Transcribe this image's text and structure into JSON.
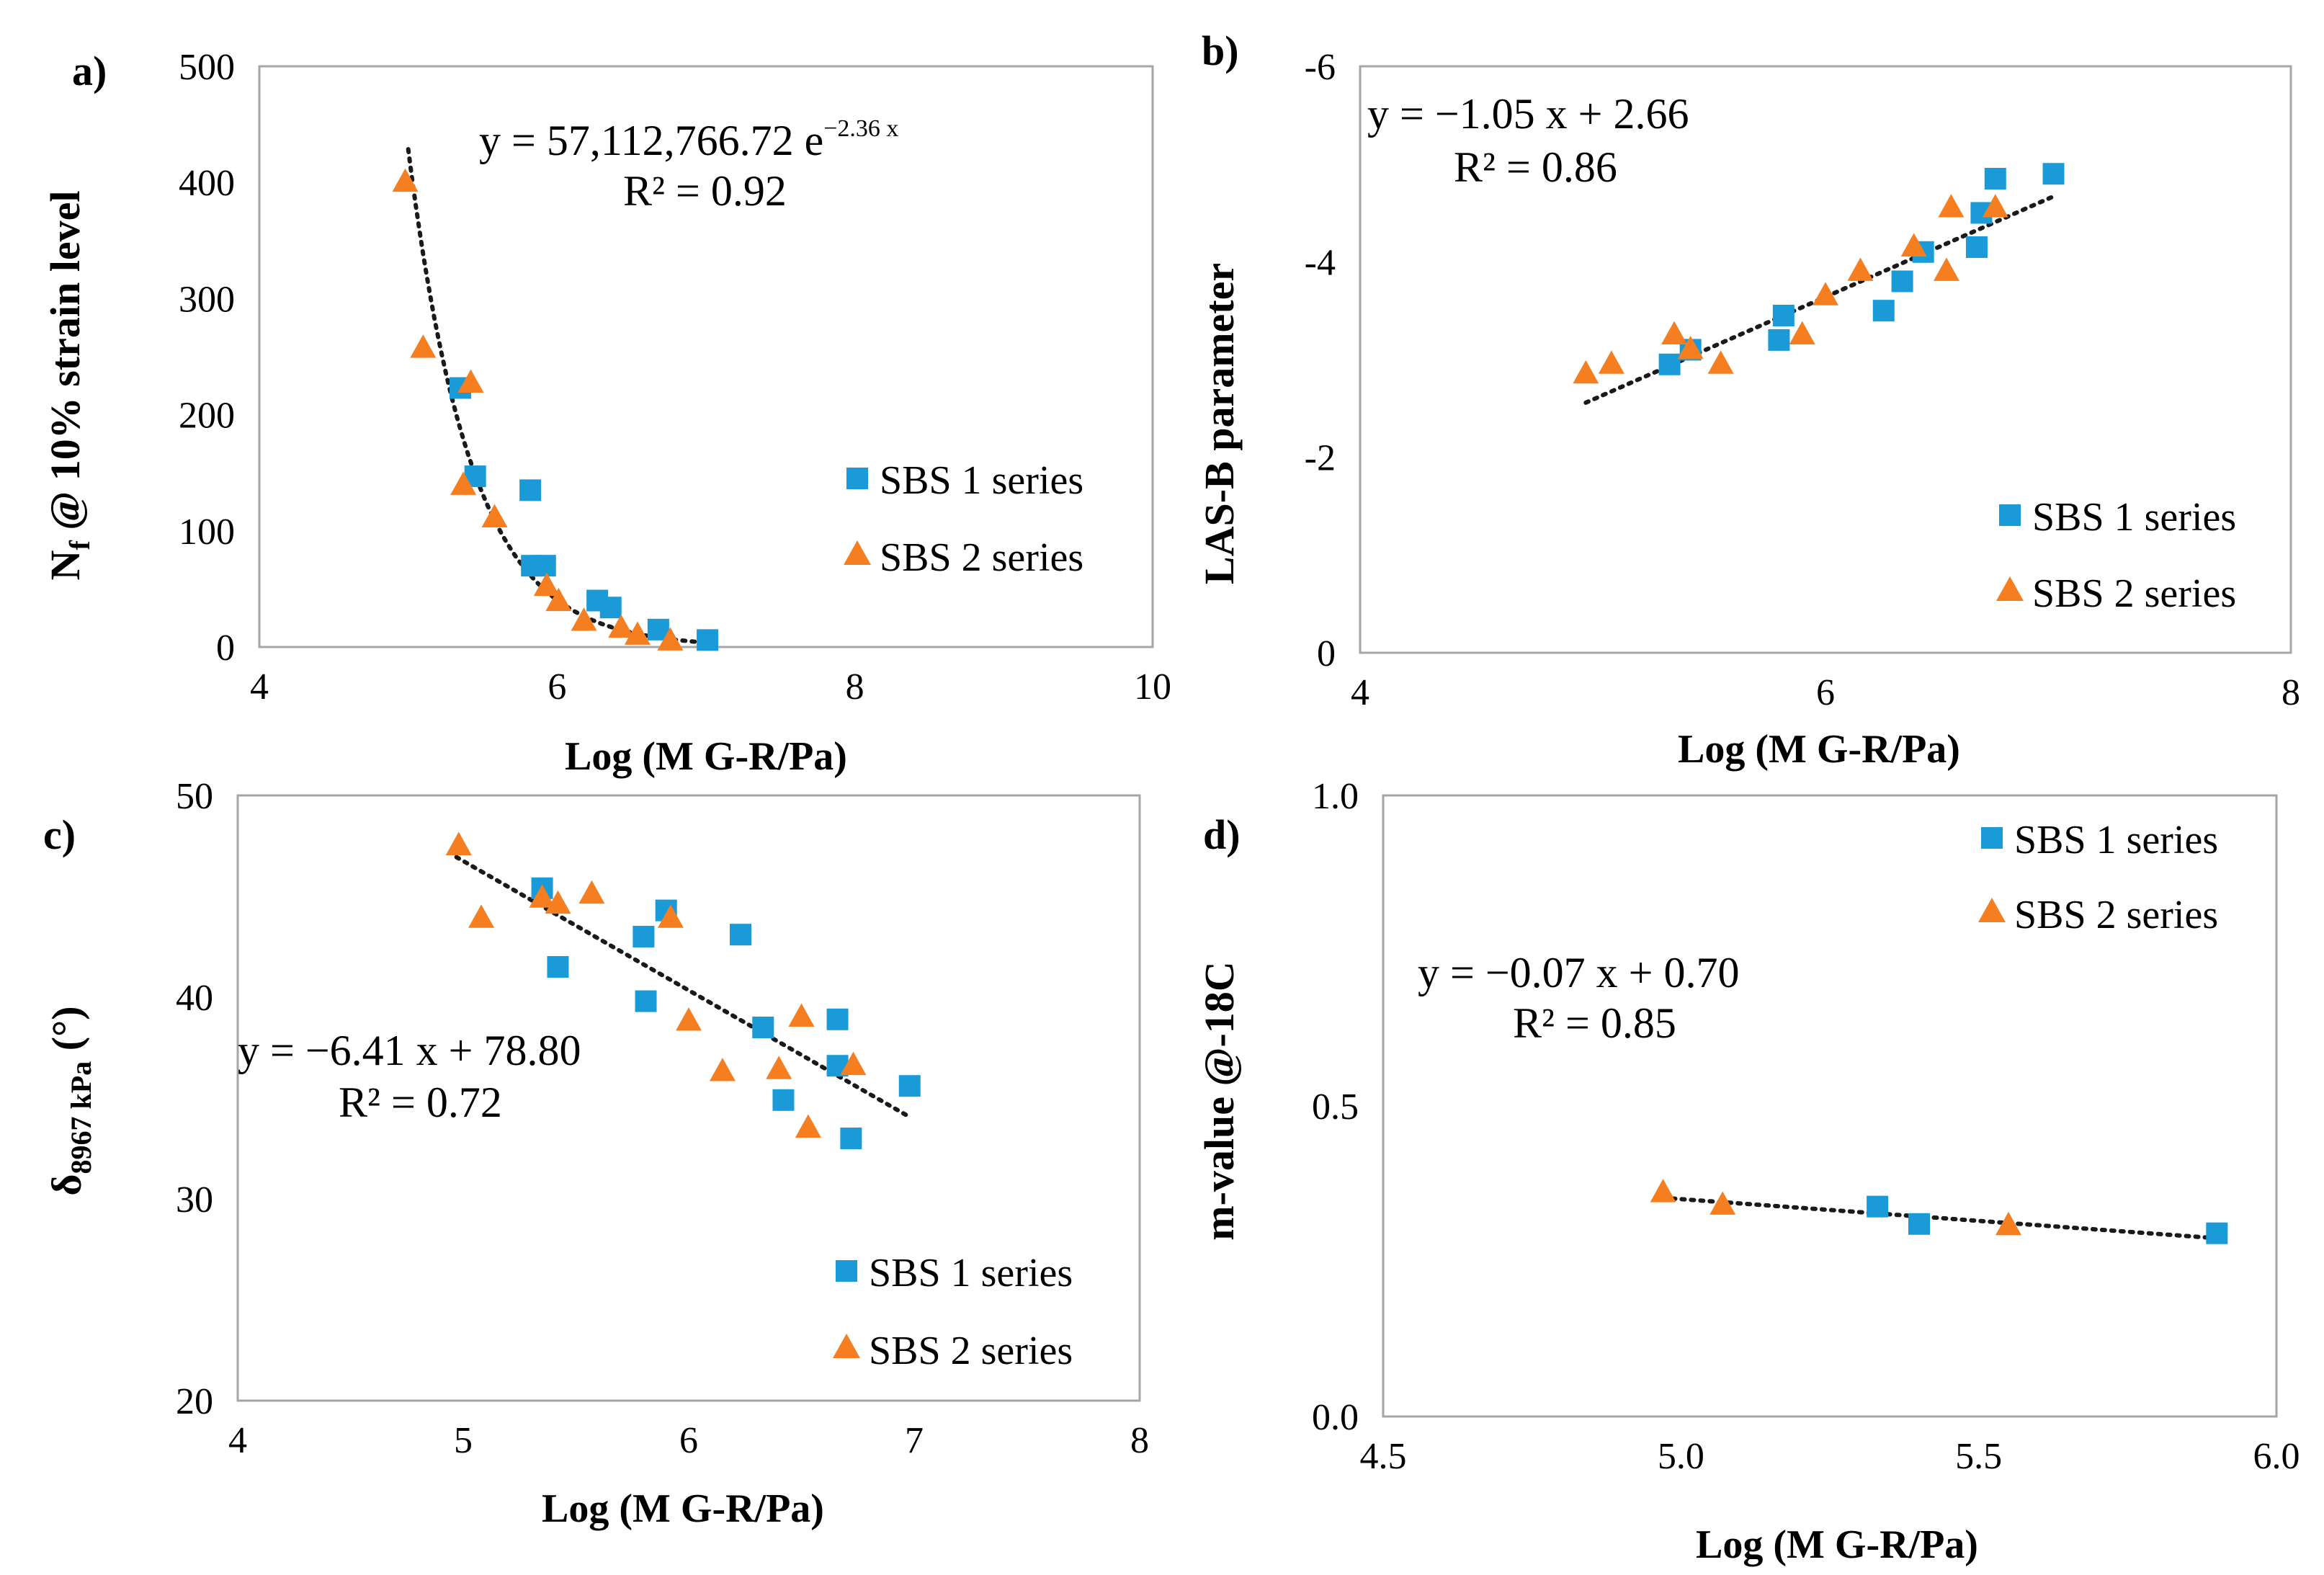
{
  "chart_data": [
    {
      "id": "a",
      "type": "scatter",
      "panel_label": "a)",
      "xlabel": "Log (M G-R/Pa)",
      "ylabel_main": "N",
      "ylabel_sub": "f",
      "ylabel_rest": " @ 10% strain level",
      "xlim": [
        4,
        10
      ],
      "ylim": [
        0,
        500
      ],
      "reversed_y": false,
      "x_ticks": [
        4,
        6,
        8,
        10
      ],
      "x_tick_labels": [
        "4",
        "6",
        "8",
        "10"
      ],
      "y_ticks": [
        0,
        100,
        200,
        300,
        400,
        500
      ],
      "y_tick_labels": [
        "0",
        "100",
        "200",
        "300",
        "400",
        "500"
      ],
      "trendline": {
        "kind": "exponential",
        "a": 57112766.72,
        "b": -2.36,
        "x_range": [
          5.0,
          7.0
        ]
      },
      "equation_line1": "y = 57,112,766.72 e",
      "equation_exponent": "−2.36 x",
      "equation_line2": "R² = 0.92",
      "legend_position": "right",
      "series": [
        {
          "name": "SBS 1 series",
          "marker": "square",
          "color": "#1A9BD7",
          "x": [
            5.35,
            5.45,
            5.82,
            5.83,
            5.92,
            6.27,
            6.36,
            6.68,
            7.01
          ],
          "y": [
            223,
            147,
            135,
            70,
            70,
            40,
            34,
            15,
            6
          ]
        },
        {
          "name": "SBS 2 series",
          "marker": "triangle",
          "color": "#F47E20",
          "x": [
            4.98,
            5.1,
            5.37,
            5.42,
            5.58,
            5.93,
            6.01,
            6.18,
            6.43,
            6.54,
            6.76
          ],
          "y": [
            400,
            257,
            139,
            227,
            111,
            52,
            39,
            22,
            16,
            10,
            5
          ]
        }
      ]
    },
    {
      "id": "b",
      "type": "scatter",
      "panel_label": "b)",
      "xlabel": "Log (M G-R/Pa)",
      "ylabel_main": "LAS-B parameter",
      "xlim": [
        4,
        8
      ],
      "ylim": [
        0,
        -6
      ],
      "reversed_y": true,
      "x_ticks": [
        4,
        6,
        8
      ],
      "x_tick_labels": [
        "4",
        "6",
        "8"
      ],
      "y_ticks": [
        0,
        -2,
        -4,
        -6
      ],
      "y_tick_labels": [
        "0",
        "-2",
        "-4",
        "-6"
      ],
      "trendline": {
        "kind": "linear",
        "m": -1.05,
        "c": 2.66,
        "x_range": [
          4.97,
          6.97
        ]
      },
      "equation_line1": "y = −1.05 x + 2.66",
      "equation_line2": "R² = 0.86",
      "legend_position": "bottom-right",
      "series": [
        {
          "name": "SBS 1 series",
          "marker": "square",
          "color": "#1A9BD7",
          "x": [
            5.33,
            5.42,
            5.8,
            5.82,
            6.25,
            6.33,
            6.42,
            6.65,
            6.67,
            6.73,
            6.98
          ],
          "y": [
            -2.95,
            -3.1,
            -3.2,
            -3.45,
            -3.5,
            -3.8,
            -4.1,
            -4.15,
            -4.5,
            -4.85,
            -4.9
          ]
        },
        {
          "name": "SBS 2 series",
          "marker": "triangle",
          "color": "#F47E20",
          "x": [
            4.97,
            5.08,
            5.35,
            5.42,
            5.55,
            5.9,
            6.0,
            6.15,
            6.38,
            6.52,
            6.54,
            6.73
          ],
          "y": [
            -2.85,
            -2.95,
            -3.25,
            -3.1,
            -2.95,
            -3.25,
            -3.65,
            -3.9,
            -4.15,
            -3.9,
            -4.55,
            -4.55
          ]
        }
      ]
    },
    {
      "id": "c",
      "type": "scatter",
      "panel_label": "c)",
      "xlabel": "Log (M G-R/Pa)",
      "ylabel_main": "δ",
      "ylabel_sub": "8967 kPa",
      "ylabel_rest": " (°)",
      "xlim": [
        4,
        8
      ],
      "ylim": [
        20,
        50
      ],
      "reversed_y": false,
      "x_ticks": [
        4,
        5,
        6,
        7,
        8
      ],
      "x_tick_labels": [
        "4",
        "5",
        "6",
        "7",
        "8"
      ],
      "y_ticks": [
        20,
        30,
        40,
        50
      ],
      "y_tick_labels": [
        "20",
        "30",
        "40",
        "50"
      ],
      "trendline": {
        "kind": "linear",
        "m": -6.41,
        "c": 78.8,
        "x_range": [
          4.97,
          6.97
        ]
      },
      "equation_line1": "y = −6.41 x + 78.80",
      "equation_line2": "R² = 0.72",
      "legend_position": "bottom-right",
      "series": [
        {
          "name": "SBS 1 series",
          "marker": "square",
          "color": "#1A9BD7",
          "x": [
            5.35,
            5.42,
            5.8,
            5.81,
            5.9,
            6.23,
            6.33,
            6.42,
            6.66,
            6.66,
            6.72,
            6.98
          ],
          "y": [
            45.4,
            41.5,
            43.0,
            39.8,
            44.3,
            43.1,
            38.5,
            34.9,
            36.6,
            38.9,
            33.0,
            35.6
          ]
        },
        {
          "name": "SBS 2 series",
          "marker": "triangle",
          "color": "#F47E20",
          "x": [
            4.98,
            5.08,
            5.35,
            5.42,
            5.57,
            5.92,
            6.0,
            6.15,
            6.4,
            6.5,
            6.53,
            6.73
          ],
          "y": [
            47.5,
            43.9,
            44.9,
            44.6,
            45.1,
            43.9,
            38.8,
            36.3,
            36.4,
            39.0,
            33.5,
            36.6
          ]
        }
      ]
    },
    {
      "id": "d",
      "type": "scatter",
      "panel_label": "d)",
      "xlabel": "Log (M G-R/Pa)",
      "ylabel_main": "m-value @-18C",
      "xlim": [
        4.5,
        6.0
      ],
      "ylim": [
        0.0,
        1.0
      ],
      "reversed_y": false,
      "x_ticks": [
        4.5,
        5.0,
        5.5,
        6.0
      ],
      "x_tick_labels": [
        "4.5",
        "5.0",
        "5.5",
        "6.0"
      ],
      "y_ticks": [
        0.0,
        0.5,
        1.0
      ],
      "y_tick_labels": [
        "0.0",
        "0.5",
        "1.0"
      ],
      "trendline": {
        "kind": "linear",
        "m": -0.07,
        "c": 0.7,
        "x_range": [
          4.97,
          5.9
        ]
      },
      "equation_line1": "y = −0.07 x + 0.70",
      "equation_line2": "R² = 0.85",
      "legend_position": "top-right",
      "series": [
        {
          "name": "SBS 1 series",
          "marker": "square",
          "color": "#1A9BD7",
          "x": [
            5.33,
            5.4,
            5.9
          ],
          "y": [
            0.338,
            0.31,
            0.295
          ]
        },
        {
          "name": "SBS 2 series",
          "marker": "triangle",
          "color": "#F47E20",
          "x": [
            4.97,
            5.07,
            5.55
          ],
          "y": [
            0.36,
            0.34,
            0.307
          ]
        }
      ]
    }
  ]
}
